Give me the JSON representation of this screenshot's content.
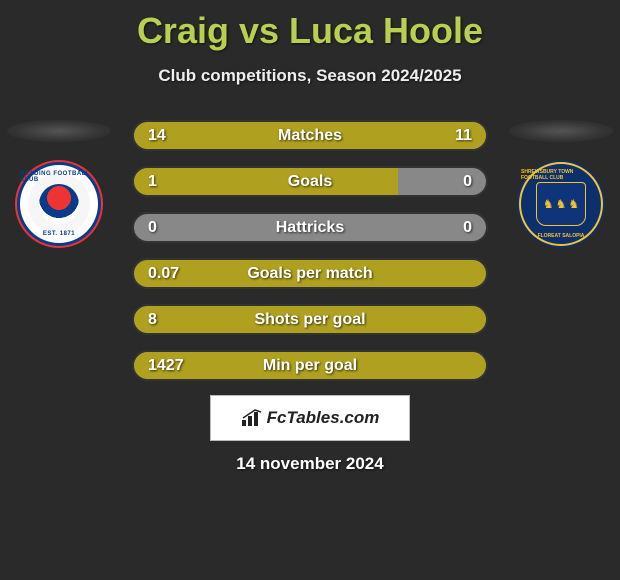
{
  "title": "Craig vs Luca Hoole",
  "subtitle": "Club competitions, Season 2024/2025",
  "colors": {
    "accent": "#b8d050",
    "bar_fill": "#b0a020",
    "bar_bg": "#888888",
    "page_bg": "#2a2a2a"
  },
  "player_left": {
    "name": "Craig",
    "club": "Reading",
    "crest_colors": {
      "outer": "#0a3a8a",
      "accent": "#e33",
      "bg": "#f6f6f6"
    },
    "crest_text_top": "READING FOOTBALL CLUB",
    "crest_text_bottom": "EST. 1871"
  },
  "player_right": {
    "name": "Luca Hoole",
    "club": "Shrewsbury Town",
    "crest_colors": {
      "bg": "#0d2f6b",
      "accent": "#f4c430"
    },
    "crest_text_top": "SHREWSBURY TOWN FOOTBALL CLUB",
    "crest_text_bottom": "FLOREAT SALOPIA"
  },
  "bars": [
    {
      "label": "Matches",
      "left": "14",
      "right": "11",
      "fill_left_pct": 50,
      "fill_right_pct": 50
    },
    {
      "label": "Goals",
      "left": "1",
      "right": "0",
      "fill_left_pct": 75,
      "fill_right_pct": 0
    },
    {
      "label": "Hattricks",
      "left": "0",
      "right": "0",
      "fill_left_pct": 0,
      "fill_right_pct": 0
    },
    {
      "label": "Goals per match",
      "left": "0.07",
      "right": "",
      "fill_left_pct": 100,
      "fill_right_pct": 0
    },
    {
      "label": "Shots per goal",
      "left": "8",
      "right": "",
      "fill_left_pct": 100,
      "fill_right_pct": 0
    },
    {
      "label": "Min per goal",
      "left": "1427",
      "right": "",
      "fill_left_pct": 100,
      "fill_right_pct": 0
    }
  ],
  "logo": {
    "text": "FcTables.com"
  },
  "date": "14 november 2024"
}
